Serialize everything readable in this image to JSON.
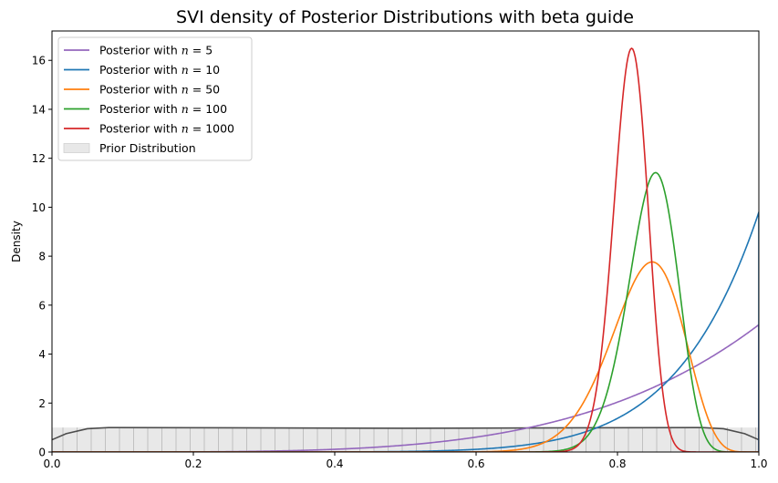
{
  "chart_data": {
    "type": "line",
    "title": "SVI density of Posterior Distributions with beta guide",
    "xlabel": "",
    "ylabel": "Density",
    "xlim": [
      0.0,
      1.0
    ],
    "ylim": [
      0,
      17.2
    ],
    "xticks": [
      0.0,
      0.2,
      0.4,
      0.6,
      0.8,
      1.0
    ],
    "xtick_labels": [
      "0.0",
      "0.2",
      "0.4",
      "0.6",
      "0.8",
      "1.0"
    ],
    "yticks": [
      0,
      2,
      4,
      6,
      8,
      10,
      12,
      14,
      16
    ],
    "ytick_labels": [
      "0",
      "2",
      "4",
      "6",
      "8",
      "10",
      "12",
      "14",
      "16"
    ],
    "grid": false,
    "legend_position": "top-left",
    "series": [
      {
        "name": "Posterior with n = 5",
        "legend_prefix": "Posterior with ",
        "legend_var": "n",
        "legend_eq": " = 5",
        "color": "#9467bd",
        "distribution": "beta",
        "alpha": 5.2,
        "beta": 1.0,
        "x": [
          0.0,
          0.1,
          0.2,
          0.3,
          0.4,
          0.5,
          0.6,
          0.7,
          0.8,
          0.9,
          1.0
        ],
        "y": [
          0.0,
          0.0,
          0.01,
          0.05,
          0.13,
          0.3,
          0.6,
          1.1,
          1.95,
          3.3,
          6.1
        ]
      },
      {
        "name": "Posterior with n = 10",
        "legend_prefix": "Posterior with ",
        "legend_var": "n",
        "legend_eq": " = 10",
        "color": "#1f77b4",
        "distribution": "beta",
        "alpha": 9.8,
        "beta": 1.0,
        "x": [
          0.0,
          0.5,
          0.6,
          0.7,
          0.8,
          0.85,
          0.9,
          0.95,
          1.0
        ],
        "y": [
          0.0,
          0.02,
          0.08,
          0.38,
          1.3,
          2.2,
          3.8,
          6.4,
          10.8
        ]
      },
      {
        "name": "Posterior with n = 50",
        "legend_prefix": "Posterior with ",
        "legend_var": "n",
        "legend_eq": " = 50",
        "color": "#ff7f0e",
        "distribution": "beta",
        "alpha": 41.5,
        "beta": 8.2,
        "x": [
          0.0,
          0.6,
          0.7,
          0.75,
          0.8,
          0.845,
          0.9,
          0.95,
          1.0
        ],
        "y": [
          0.0,
          0.05,
          1.0,
          2.8,
          5.4,
          7.1,
          4.8,
          0.65,
          0.0
        ]
      },
      {
        "name": "Posterior with n = 100",
        "legend_prefix": "Posterior with ",
        "legend_var": "n",
        "legend_eq": " = 100",
        "color": "#2ca02c",
        "distribution": "beta",
        "alpha": 87.5,
        "beta": 15.8,
        "x": [
          0.0,
          0.7,
          0.75,
          0.8,
          0.852,
          0.9,
          0.95,
          1.0
        ],
        "y": [
          0.0,
          0.02,
          0.5,
          4.0,
          10.45,
          4.9,
          0.1,
          0.0
        ]
      },
      {
        "name": "Posterior with n = 1000",
        "legend_prefix": "Posterior with ",
        "legend_var": "n",
        "legend_eq": " = 1000",
        "color": "#d62728",
        "distribution": "beta",
        "alpha": 207.0,
        "beta": 46.2,
        "x": [
          0.0,
          0.72,
          0.76,
          0.8,
          0.82,
          0.84,
          0.88,
          0.92
        ],
        "y": [
          0.0,
          0.0,
          1.5,
          12.2,
          16.3,
          12.5,
          1.2,
          0.0
        ]
      }
    ],
    "prior": {
      "name": "Prior Distribution",
      "distribution": "uniform",
      "fill_color": "#e8e8e8",
      "hatch_color": "#c0c0c0",
      "kde_color": "#4d4d4d",
      "height": 1.0,
      "kde_x": [
        0.0,
        0.02,
        0.05,
        0.08,
        0.5,
        0.92,
        0.95,
        0.98,
        1.0
      ],
      "kde_y": [
        0.5,
        0.75,
        0.95,
        1.0,
        0.97,
        1.0,
        0.95,
        0.75,
        0.5
      ]
    }
  }
}
